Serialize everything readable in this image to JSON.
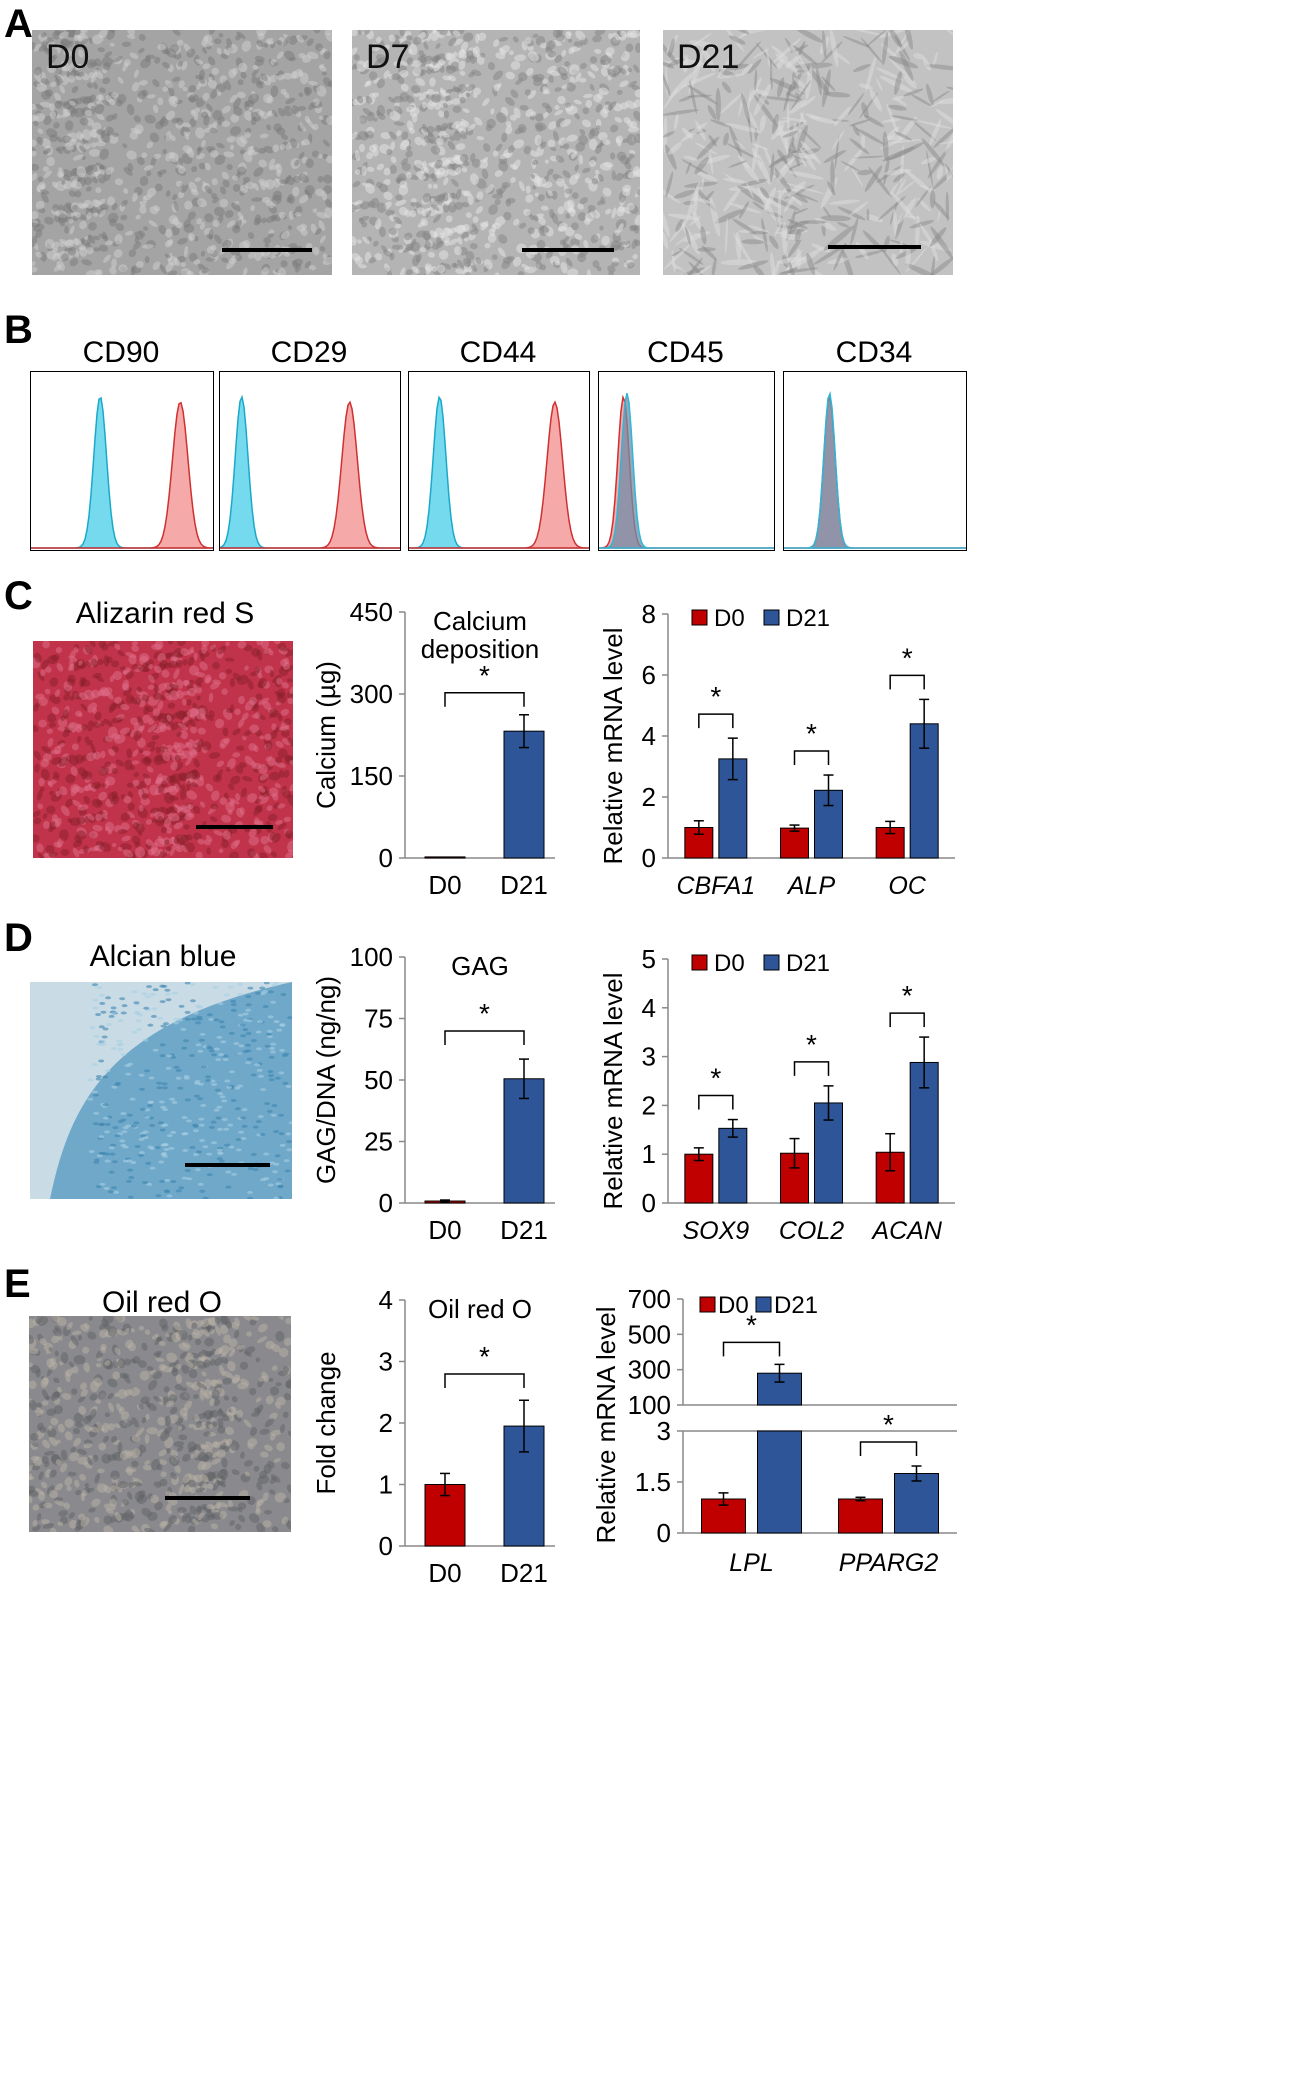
{
  "panels": {
    "A": {
      "letter": "A",
      "images": [
        {
          "label": "D0",
          "tone": "#a4a4a4"
        },
        {
          "label": "D7",
          "tone": "#b4b4b4"
        },
        {
          "label": "D21",
          "tone": "#c2c2c2"
        }
      ]
    },
    "B": {
      "letter": "B",
      "markers": [
        {
          "name": "CD90",
          "blue_peak": 0.38,
          "red_peak": 0.82,
          "overlap": false
        },
        {
          "name": "CD29",
          "blue_peak": 0.12,
          "red_peak": 0.72,
          "overlap": false
        },
        {
          "name": "CD44",
          "blue_peak": 0.17,
          "red_peak": 0.81,
          "overlap": false
        },
        {
          "name": "CD45",
          "blue_peak": 0.16,
          "red_peak": 0.14,
          "overlap": true
        },
        {
          "name": "CD34",
          "blue_peak": 0.25,
          "red_peak": 0.25,
          "overlap": true
        }
      ]
    },
    "C": {
      "letter": "C",
      "stain_title": "Alizarin red S",
      "stain_color": "#c0334a"
    },
    "D": {
      "letter": "D",
      "stain_title": "Alcian blue",
      "stain_color": "#6fa8c9"
    },
    "E": {
      "letter": "E",
      "stain_title": "Oil red O",
      "stain_color": "#8a8a8e"
    }
  },
  "colors": {
    "d0": "#c00000",
    "d21": "#2e5597",
    "flow_blue": "#67d6ec",
    "flow_red": "#f4a0a0"
  },
  "chart_data": [
    {
      "id": "C-calcium",
      "type": "bar",
      "title": "Calcium\ndeposition",
      "ylabel": "Calcium (µg)",
      "categories": [
        "D0",
        "D21"
      ],
      "values": [
        2,
        232
      ],
      "errors": [
        0,
        30
      ],
      "ylim": [
        0,
        450
      ],
      "yticks": [
        0,
        150,
        300,
        450
      ],
      "significance": [
        {
          "between": [
            0,
            1
          ],
          "label": "*"
        }
      ]
    },
    {
      "id": "C-mrna",
      "type": "bar",
      "ylabel": "Relative  mRNA level",
      "categories": [
        "CBFA1",
        "ALP",
        "OC"
      ],
      "series": [
        {
          "name": "D0",
          "values": [
            1.0,
            0.98,
            1.0
          ],
          "errors": [
            0.22,
            0.1,
            0.2
          ]
        },
        {
          "name": "D21",
          "values": [
            3.25,
            2.22,
            4.4
          ],
          "errors": [
            0.68,
            0.5,
            0.8
          ]
        }
      ],
      "ylim": [
        0,
        8
      ],
      "yticks": [
        0,
        2,
        4,
        6,
        8
      ],
      "significance": [
        {
          "group": 0,
          "label": "*"
        },
        {
          "group": 1,
          "label": "*"
        },
        {
          "group": 2,
          "label": "*"
        }
      ]
    },
    {
      "id": "D-gag",
      "type": "bar",
      "title": "GAG",
      "ylabel": "GAG/DNA (ng/ng)",
      "categories": [
        "D0",
        "D21"
      ],
      "values": [
        0.8,
        50.5
      ],
      "errors": [
        0.4,
        8
      ],
      "ylim": [
        0,
        100
      ],
      "yticks": [
        0,
        25,
        50,
        75,
        100
      ],
      "significance": [
        {
          "between": [
            0,
            1
          ],
          "label": "*"
        }
      ]
    },
    {
      "id": "D-mrna",
      "type": "bar",
      "ylabel": "Relative  mRNA level",
      "categories": [
        "SOX9",
        "COL2",
        "ACAN"
      ],
      "series": [
        {
          "name": "D0",
          "values": [
            1.0,
            1.02,
            1.04
          ],
          "errors": [
            0.13,
            0.3,
            0.38
          ]
        },
        {
          "name": "D21",
          "values": [
            1.53,
            2.05,
            2.88
          ],
          "errors": [
            0.18,
            0.35,
            0.52
          ]
        }
      ],
      "ylim": [
        0,
        5
      ],
      "yticks": [
        0,
        1,
        2,
        3,
        4,
        5
      ],
      "significance": [
        {
          "group": 0,
          "label": "*"
        },
        {
          "group": 1,
          "label": "*"
        },
        {
          "group": 2,
          "label": "*"
        }
      ]
    },
    {
      "id": "E-oil",
      "type": "bar",
      "title": "Oil red O",
      "ylabel": "Fold change",
      "categories": [
        "D0",
        "D21"
      ],
      "values": [
        1.0,
        1.95
      ],
      "errors": [
        0.18,
        0.42
      ],
      "ylim": [
        0,
        4
      ],
      "yticks": [
        0,
        1,
        2,
        3,
        4
      ],
      "significance": [
        {
          "between": [
            0,
            1
          ],
          "label": "*"
        }
      ]
    },
    {
      "id": "E-mrna",
      "type": "bar",
      "ylabel": "Relative  mRNA level",
      "categories": [
        "LPL",
        "PPARG2"
      ],
      "series": [
        {
          "name": "D0",
          "values": [
            1.0,
            1.0
          ],
          "errors": [
            0.18,
            0.05
          ]
        },
        {
          "name": "D21",
          "values": [
            280,
            1.75
          ],
          "errors": [
            50,
            0.22
          ]
        }
      ],
      "broken_axis": {
        "lower": [
          0,
          3
        ],
        "upper": [
          100,
          700
        ]
      },
      "yticks_lower": [
        0,
        1.5,
        3
      ],
      "yticks_upper": [
        100,
        300,
        500,
        700
      ],
      "significance": [
        {
          "group": 0,
          "label": "*"
        },
        {
          "group": 1,
          "label": "*"
        }
      ]
    }
  ]
}
